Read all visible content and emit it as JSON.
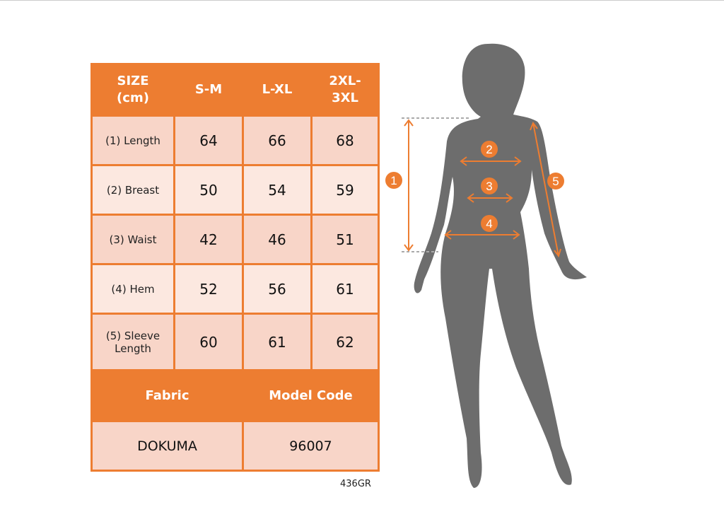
{
  "table": {
    "headers": [
      "SIZE\n(cm)",
      "S-M",
      "L-XL",
      "2XL-\n3XL"
    ],
    "header_lines": [
      [
        "SIZE",
        "(cm)"
      ],
      [
        "S-M"
      ],
      [
        "L-XL"
      ],
      [
        "2XL-",
        "3XL"
      ]
    ],
    "rows": [
      {
        "label": "(1) Length",
        "values": [
          "64",
          "66",
          "68"
        ]
      },
      {
        "label": "(2) Breast",
        "values": [
          "50",
          "54",
          "59"
        ]
      },
      {
        "label": "(3) Waist",
        "values": [
          "42",
          "46",
          "51"
        ]
      },
      {
        "label": "(4) Hem",
        "values": [
          "52",
          "56",
          "61"
        ]
      },
      {
        "label": "(5) Sleeve Length",
        "label_lines": [
          "(5) Sleeve",
          "Length"
        ],
        "values": [
          "60",
          "61",
          "62"
        ]
      }
    ],
    "fabric_header": "Fabric",
    "model_code_header": "Model Code",
    "fabric": "DOKUMA",
    "model_code": "96007"
  },
  "product_code": "436GR",
  "figure": {
    "markers": [
      "1",
      "2",
      "3",
      "4",
      "5"
    ]
  },
  "colors": {
    "accent": "#ed7d31",
    "silhouette": "#6d6d6d",
    "row_dark": "#f8d5c8",
    "row_light": "#fce8e0"
  }
}
